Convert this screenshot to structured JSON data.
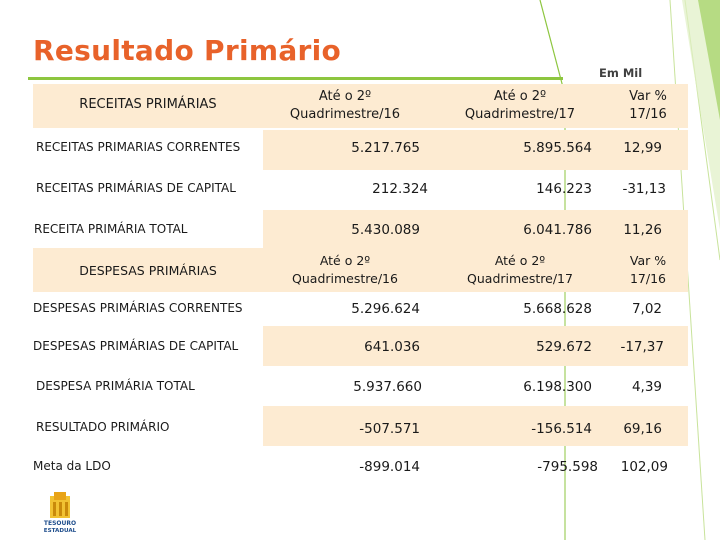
{
  "title": "Resultado Primário",
  "unit_label": "Em Mil",
  "receitas": {
    "header": {
      "section": "RECEITAS PRIMÁRIAS",
      "col1_line1": "Até o 2º",
      "col1_line2": "Quadrimestre/16",
      "col2_line1": "Até o 2º",
      "col2_line2": "Quadrimestre/17",
      "col3_line1": "Var %",
      "col3_line2": "17/16"
    },
    "rows": [
      {
        "label": "RECEITAS PRIMARIAS CORRENTES",
        "v16": "5.217.765",
        "v17": "5.895.564",
        "var": "12,99"
      },
      {
        "label": "RECEITAS PRIMÁRIAS DE CAPITAL",
        "v16": "212.324",
        "v17": "146.223",
        "var": "-31,13"
      },
      {
        "label": "RECEITA PRIMÁRIA TOTAL",
        "v16": "5.430.089",
        "v17": "6.041.786",
        "var": "11,26"
      }
    ]
  },
  "despesas": {
    "header": {
      "section": "DESPESAS PRIMÁRIAS",
      "col1_line1": "Até o 2º",
      "col1_line2": "Quadrimestre/16",
      "col2_line1": "Até o 2º",
      "col2_line2": "Quadrimestre/17",
      "col3_line1": "Var %",
      "col3_line2": "17/16"
    },
    "rows": [
      {
        "label": "DESPESAS PRIMÁRIAS CORRENTES",
        "v16": "5.296.624",
        "v17": "5.668.628",
        "var": "7,02"
      },
      {
        "label": "DESPESAS PRIMÁRIAS  DE CAPITAL",
        "v16": "641.036",
        "v17": "529.672",
        "var": "-17,37"
      },
      {
        "label": "DESPESA PRIMÁRIA TOTAL",
        "v16": "5.937.660",
        "v17": "6.198.300",
        "var": "4,39"
      }
    ]
  },
  "resultado": {
    "rows": [
      {
        "label": "RESULTADO PRIMÁRIO",
        "v16": "-507.571",
        "v17": "-156.514",
        "var": "69,16"
      },
      {
        "label": "Meta da LDO",
        "v16": "-899.014",
        "v17": "-795.598",
        "var": "102,09"
      }
    ]
  },
  "logo_text": "TESOURO ESTADUAL",
  "colors": {
    "title": "#e8622a",
    "accent": "#8dc63f",
    "band": "#fdebd2"
  }
}
